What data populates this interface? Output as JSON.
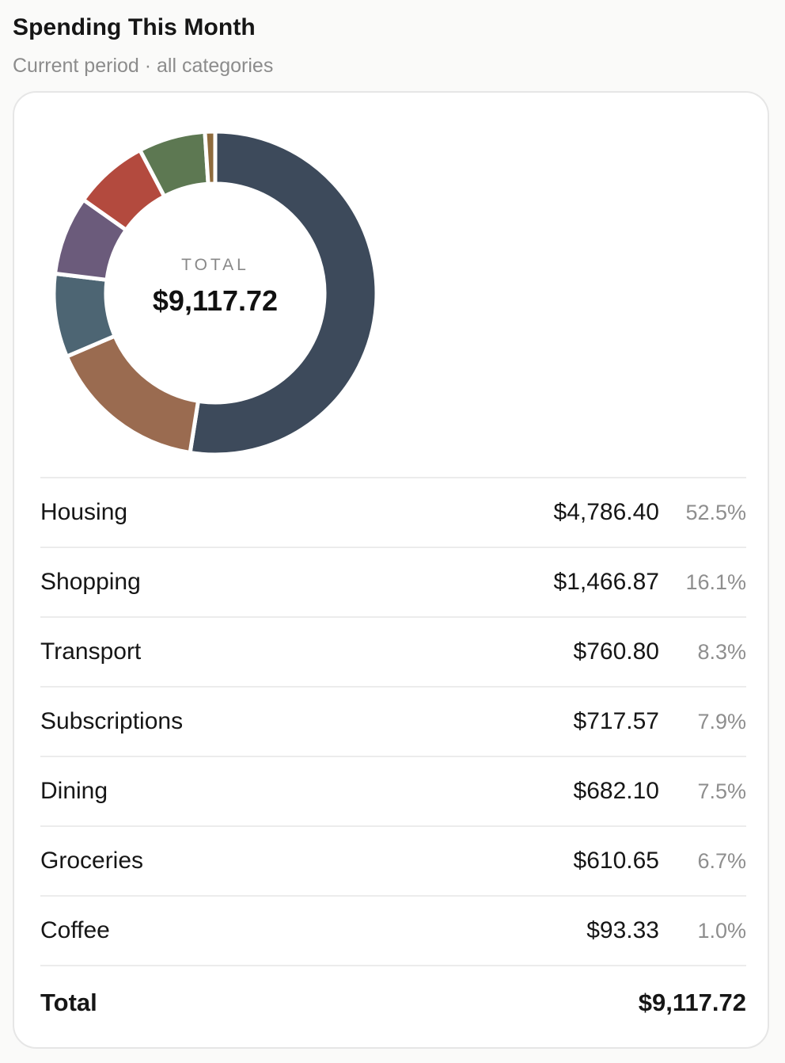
{
  "header": {
    "title": "Spending This Month",
    "subtitle": "Current period · all categories"
  },
  "center": {
    "label": "TOTAL",
    "value": "$9,117.72"
  },
  "chart_data": {
    "type": "pie",
    "categories": [
      "Housing",
      "Shopping",
      "Transport",
      "Subscriptions",
      "Dining",
      "Groceries",
      "Coffee"
    ],
    "values": [
      4786.4,
      1466.87,
      760.8,
      717.57,
      682.1,
      610.65,
      93.33
    ],
    "colors": [
      "#3d4a5b",
      "#9a6b50",
      "#4d6573",
      "#6b5b7b",
      "#b34a3e",
      "#5d7852",
      "#8f6b3c"
    ],
    "title": "",
    "xlabel": "",
    "ylabel": ""
  },
  "rows": [
    {
      "name": "Housing",
      "amount": "$4,786.40",
      "pct": "52.5%"
    },
    {
      "name": "Shopping",
      "amount": "$1,466.87",
      "pct": "16.1%"
    },
    {
      "name": "Transport",
      "amount": "$760.80",
      "pct": "8.3%"
    },
    {
      "name": "Subscriptions",
      "amount": "$717.57",
      "pct": "7.9%"
    },
    {
      "name": "Dining",
      "amount": "$682.10",
      "pct": "7.5%"
    },
    {
      "name": "Groceries",
      "amount": "$610.65",
      "pct": "6.7%"
    },
    {
      "name": "Coffee",
      "amount": "$93.33",
      "pct": "1.0%"
    }
  ],
  "total": {
    "label": "Total",
    "amount": "$9,117.72"
  }
}
